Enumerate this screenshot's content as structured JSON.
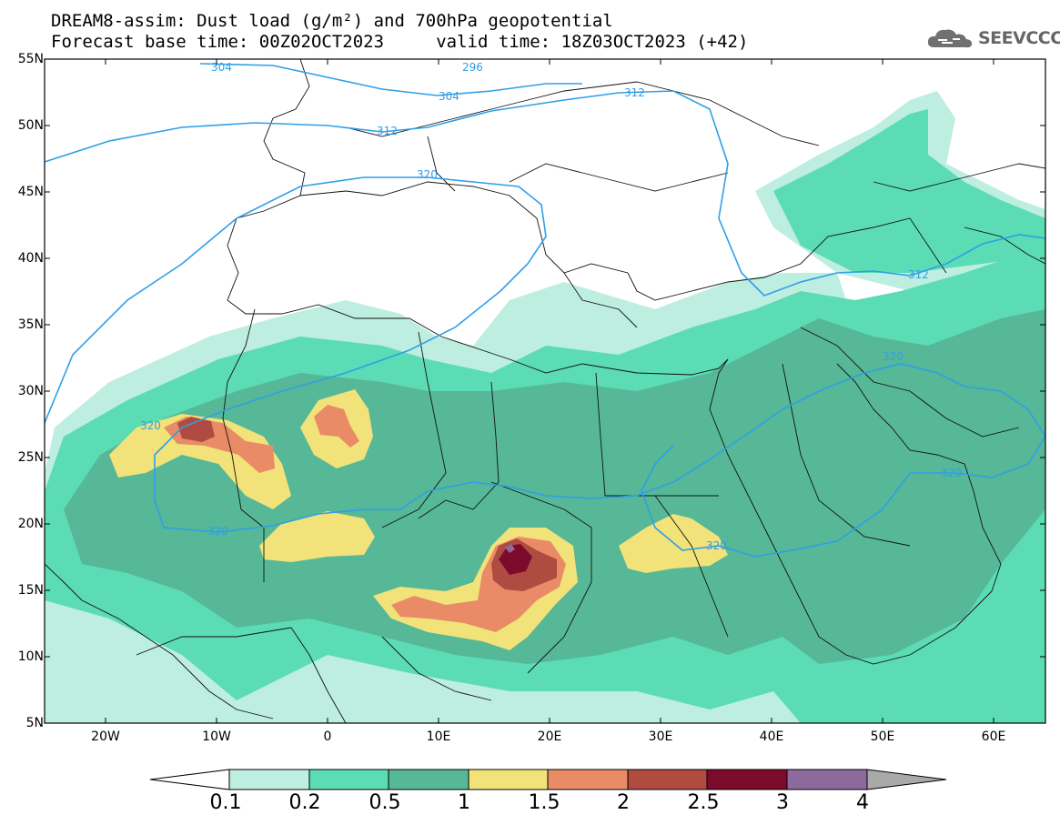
{
  "header": {
    "title_line1": "DREAM8-assim: Dust load (g/m²) and 700hPa geopotential",
    "title_line2": "Forecast base time: 00Z02OCT2023     valid time: 18Z03OCT2023 (+42)"
  },
  "logo": {
    "text": "SEEVCCC",
    "icon": "cloud-icon"
  },
  "map": {
    "lat_labels": [
      "55N",
      "50N",
      "45N",
      "40N",
      "35N",
      "30N",
      "25N",
      "20N",
      "15N",
      "10N",
      "5N"
    ],
    "lon_labels": [
      "20W",
      "10W",
      "0",
      "10E",
      "20E",
      "30E",
      "40E",
      "50E",
      "60E"
    ],
    "contour_labels": [
      "304",
      "296",
      "304",
      "312",
      "312",
      "320",
      "312",
      "320",
      "320",
      "320",
      "320",
      "320"
    ]
  },
  "colorbar": {
    "labels": [
      "0.1",
      "0.2",
      "0.5",
      "1",
      "1.5",
      "2",
      "2.5",
      "3",
      "4"
    ],
    "colors": [
      "#ffffff",
      "#bdeee0",
      "#5bdcb4",
      "#56b896",
      "#f2e27a",
      "#e98b66",
      "#b04b41",
      "#7c0a2b",
      "#8c6a9e",
      "#a9a9a9"
    ]
  }
}
